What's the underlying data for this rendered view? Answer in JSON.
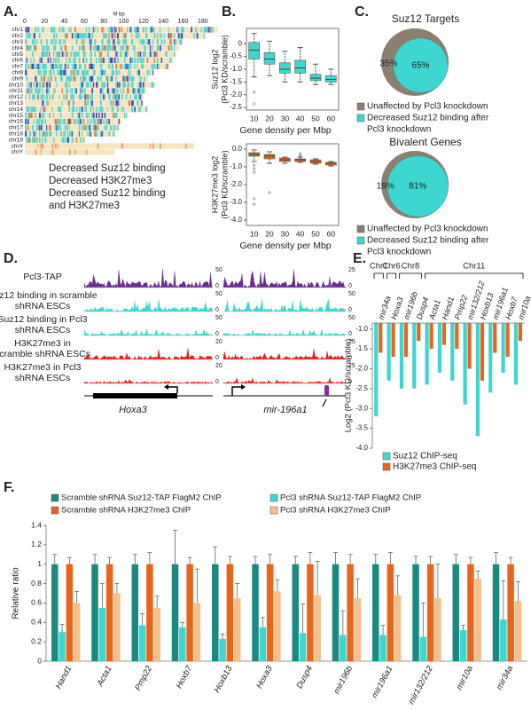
{
  "panel_labels": [
    "A.",
    "B.",
    "C.",
    "D.",
    "E.",
    "F."
  ],
  "chart_data": [
    {
      "type": "chromosome_map",
      "xlabel": "M bp",
      "xlim": [
        0,
        190
      ],
      "xticks": [
        0,
        20,
        40,
        60,
        80,
        100,
        120,
        140,
        160,
        180
      ],
      "categories": [
        "chr1",
        "chr2",
        "chr3",
        "chr4",
        "chr5",
        "chr6",
        "chr7",
        "chr8",
        "chr9",
        "chr10",
        "chr11",
        "chr12",
        "chr13",
        "chr14",
        "chr15",
        "chr16",
        "chr17",
        "chr18",
        "chr19",
        "chrX",
        "chrY"
      ],
      "values": [
        195,
        182,
        160,
        156,
        152,
        150,
        145,
        130,
        125,
        130,
        122,
        120,
        120,
        125,
        104,
        98,
        95,
        91,
        61,
        171,
        91
      ],
      "background": "#f7e4c0",
      "legend": [
        {
          "lines": [
            "Decreased Suz12 binding"
          ],
          "color": "#3ed6d0"
        },
        {
          "lines": [
            "Decreased H3K27me3"
          ],
          "color": "#e8651c"
        },
        {
          "lines": [
            "Decreased Suz12 binding",
            "and H3K27me3"
          ],
          "color": "#1f3fc8"
        }
      ]
    },
    {
      "type": "box",
      "ylabel": [
        "Suz12 log2",
        "(Pcl3 KD/scramble)"
      ],
      "xlabel": "Gene density per Mbp",
      "categories": [
        10,
        20,
        30,
        40,
        50,
        60
      ],
      "color": "#3ed6d0",
      "median": [
        -0.25,
        -0.6,
        -1.0,
        -0.95,
        -1.35,
        -1.4
      ],
      "q1": [
        -0.6,
        -0.8,
        -1.15,
        -1.15,
        -1.45,
        -1.5
      ],
      "q3": [
        0.05,
        -0.35,
        -0.75,
        -0.65,
        -1.2,
        -1.25
      ],
      "whisker_low": [
        -1.3,
        -1.25,
        -1.5,
        -1.5,
        -1.6,
        -1.6
      ],
      "whisker_high": [
        0.4,
        0.1,
        -0.3,
        -0.15,
        -0.8,
        -1.0
      ],
      "outliers": [
        [
          -1.9,
          -2.35
        ],
        [],
        [],
        [],
        [],
        []
      ],
      "ylim": [
        -2.6,
        0.6
      ],
      "yticks": [
        0,
        -0.5,
        {
          "value": -1,
          "label": "-1.0"
        },
        -1.5,
        {
          "value": -2,
          "label": "-2.0"
        },
        -2.5
      ]
    },
    {
      "type": "box",
      "ylabel": [
        "H3K27me3 log2",
        "(Pcl3 KD/scramble)"
      ],
      "xlabel": "Gene density per Mbp",
      "categories": [
        10,
        20,
        30,
        40,
        50,
        60
      ],
      "color": "#e8651c",
      "median": [
        -0.3,
        -0.4,
        -0.6,
        -0.6,
        -0.7,
        -0.8
      ],
      "q1": [
        -0.4,
        -0.55,
        -0.7,
        -0.7,
        -0.8,
        -0.9
      ],
      "q3": [
        -0.2,
        -0.3,
        -0.5,
        -0.55,
        -0.6,
        -0.75
      ],
      "whisker_low": [
        -0.7,
        -0.8,
        -0.8,
        -0.75,
        -0.85,
        -0.95
      ],
      "whisker_high": [
        -0.05,
        -0.15,
        -0.45,
        -0.45,
        -0.55,
        -0.7
      ],
      "outliers": [
        [
          -0.9,
          -1.1,
          -1.3,
          -2.8,
          -3.1
        ],
        [
          -2.45
        ],
        [],
        [
          -0.25,
          -0.35
        ],
        [],
        []
      ],
      "ylim": [
        -4.3,
        0.3
      ],
      "yticks": [
        {
          "value": 0,
          "label": "0.0"
        },
        {
          "value": -1,
          "label": "-1.0"
        },
        {
          "value": -2,
          "label": "-2.0"
        },
        {
          "value": -3,
          "label": "-3.0"
        },
        {
          "value": -4,
          "label": "-4.0"
        }
      ]
    },
    {
      "type": "pie",
      "title": "Suz12 Targets",
      "categories": [
        [
          "Unaffected by Pcl3 knockdown"
        ],
        [
          "Decreased Suz12 binding after",
          "Pcl3 knockdown"
        ]
      ],
      "values": [
        35,
        65
      ],
      "value_labels": [
        "35%",
        "65%"
      ],
      "colors": [
        "#8c7f6f",
        "#3ed6d0"
      ]
    },
    {
      "type": "pie",
      "title": "Bivalent Genes",
      "categories": [
        [
          "Unaffected by Pcl3 knockdown"
        ],
        [
          "Decreased Suz12 binding after",
          "Pcl3 knockdown"
        ]
      ],
      "values": [
        19,
        81
      ],
      "value_labels": [
        "19%",
        "81%"
      ],
      "colors": [
        "#8c7f6f",
        "#3ed6d0"
      ]
    },
    {
      "type": "bar",
      "ylabel": "Log2 (Pcl3 KD/scramble)",
      "groups": [
        {
          "name": "Chr1",
          "categories": [
            "mir34a"
          ]
        },
        {
          "name": "Chr6",
          "categories": [
            "Hoxa3"
          ]
        },
        {
          "name": "Chr8",
          "categories": [
            "mir196b",
            "Dusp4"
          ]
        },
        {
          "name": "Chr11",
          "categories": [
            "Acta1",
            "Hand1",
            "Pmp22",
            "mir132/212",
            "Hoxb13",
            "mir196a1",
            "Hoxb7",
            "mir10a"
          ]
        }
      ],
      "series": [
        {
          "name": "Suz12 ChIP-seq",
          "color": "#3ed6d0",
          "values": [
            -3.2,
            -2.3,
            -2.5,
            -2.5,
            -2.4,
            -2.1,
            -2.3,
            -2.9,
            -3.7,
            -2.6,
            -2.1,
            -2.4
          ]
        },
        {
          "name": "H3K27me3 ChIP-seq",
          "color": "#e8651c",
          "values": [
            -1.6,
            -1.7,
            -1.7,
            -1.3,
            -1.5,
            -1.4,
            -1.5,
            -2.0,
            -2.3,
            -1.6,
            -1.7,
            -1.3
          ]
        }
      ],
      "ylim": [
        -4.0,
        -0.85
      ],
      "yticks": [
        {
          "value": -1,
          "label": "-1.0"
        },
        -1.5,
        {
          "value": -2,
          "label": "-2.0"
        },
        -2.5,
        {
          "value": -3,
          "label": "-3.0"
        },
        -3.5,
        {
          "value": -4,
          "label": "-4.0"
        }
      ]
    },
    {
      "type": "grouped_bar",
      "ylabel": "Relative ratio",
      "categories": [
        "Hand1",
        "Acta1",
        "Pmp22",
        "Hoxb7",
        "Hoxb13",
        "Hoxa3",
        "Dusp4",
        "mir196b",
        "mir196a1",
        "mir132/212",
        "mir10a",
        "mir34a"
      ],
      "series": [
        {
          "name": "Scramble shRNA Suz12-TAP FlagM2 ChIP",
          "color": "#1a8a80",
          "values": [
            1,
            1,
            1,
            1,
            1,
            1,
            1,
            1,
            1,
            1,
            1,
            1
          ],
          "errors": [
            0.1,
            0.1,
            0.1,
            0.35,
            0.18,
            0.08,
            0.08,
            0.12,
            0.1,
            0.08,
            0.1,
            0.12
          ]
        },
        {
          "name": "Pcl3 shRNA Suz12-TAP FlagM2 ChIP",
          "color": "#3ed6d0",
          "values": [
            0.3,
            0.55,
            0.37,
            0.35,
            0.23,
            0.35,
            0.29,
            0.27,
            0.27,
            0.25,
            0.32,
            0.43
          ],
          "errors": [
            0.08,
            0.25,
            0.12,
            0.05,
            0.05,
            0.1,
            0.3,
            0.25,
            0.1,
            0.35,
            0.05,
            0.4
          ]
        },
        {
          "name": "Scramble shRNA H3K27me3 ChIP",
          "color": "#e8651c",
          "values": [
            1,
            1,
            1,
            1,
            1,
            1,
            1,
            1,
            1,
            1,
            1,
            1
          ],
          "errors": [
            0.07,
            0.07,
            0.12,
            0.07,
            0.08,
            0.1,
            0.12,
            0.1,
            0.12,
            0.08,
            0.07,
            0.07
          ]
        },
        {
          "name": "Pcl3 shRNA H3K27me3 ChIP",
          "color": "#f6c08c",
          "values": [
            0.6,
            0.7,
            0.55,
            0.6,
            0.65,
            0.72,
            0.68,
            0.65,
            0.68,
            0.65,
            0.85,
            0.62
          ],
          "errors": [
            0.12,
            0.1,
            0.12,
            0.35,
            0.15,
            0.12,
            0.35,
            0.2,
            0.2,
            0.35,
            0.08,
            0.2
          ]
        }
      ],
      "ylim": [
        0,
        1.4
      ],
      "yticks": [
        0,
        0.2,
        0.4,
        0.6,
        0.8,
        1,
        1.2,
        1.4
      ]
    }
  ],
  "panel_d": {
    "tracks": [
      {
        "lines": [
          "Pcl3-TAP"
        ],
        "color": "#6a2c91",
        "left_scale": [
          50,
          0
        ],
        "right_scale": [
          25,
          0
        ]
      },
      {
        "lines": [
          "Suz12 binding in scramble",
          "shRNA ESCs"
        ],
        "color": "#3ed6d0",
        "left_scale": [
          50,
          0
        ],
        "right_scale": [
          50,
          0
        ]
      },
      {
        "lines": [
          "Suz12 binding in Pcl3",
          "shRNA ESCs"
        ],
        "color": "#3ed6d0",
        "left_scale": [
          50,
          0
        ],
        "right_scale": [
          50,
          0
        ]
      },
      {
        "lines": [
          "H3K27me3 in",
          "scramble shRNA ESCs"
        ],
        "color": "#e0201b",
        "left_scale": [
          20,
          0
        ],
        "right_scale": [
          25,
          0
        ]
      },
      {
        "lines": [
          "H3K27me3 in Pcl3",
          "shRNA ESCs"
        ],
        "color": "#e0201b",
        "left_scale": [
          20,
          0
        ],
        "right_scale": [
          25,
          0
        ]
      }
    ],
    "genes": [
      "Hoxa3",
      "mir-196a1"
    ]
  }
}
